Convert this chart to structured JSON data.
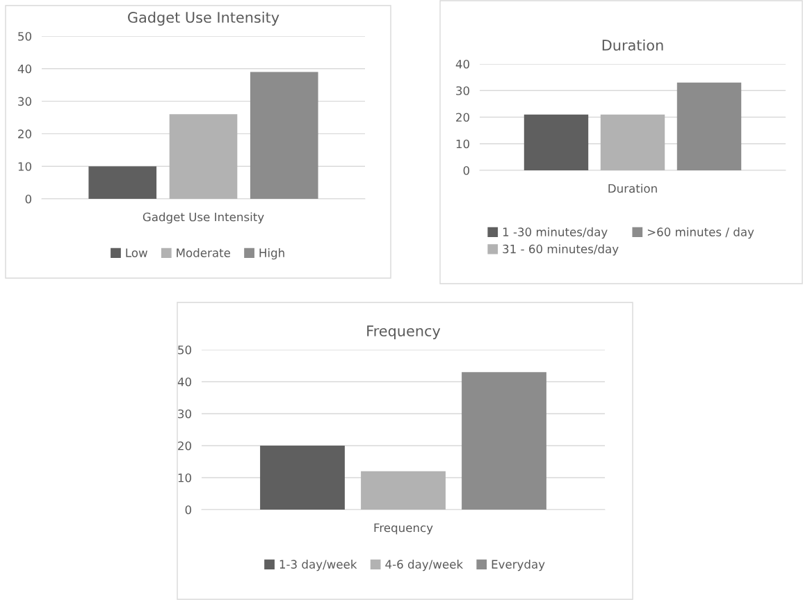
{
  "chart_data": [
    {
      "type": "bar",
      "title": "Gadget Use Intensity",
      "categories": [
        "Gadget Use Intensity"
      ],
      "ylim": [
        0,
        50
      ],
      "yticks": [
        0,
        10,
        20,
        30,
        40,
        50
      ],
      "grid": "y",
      "legend": "bottom",
      "series": [
        {
          "name": "Low",
          "color": "#5f5f5f",
          "values": [
            10
          ]
        },
        {
          "name": "Moderate",
          "color": "#b2b2b2",
          "values": [
            26
          ]
        },
        {
          "name": "High",
          "color": "#8c8c8c",
          "values": [
            39
          ]
        }
      ]
    },
    {
      "type": "bar",
      "title": "Duration",
      "categories": [
        "Duration"
      ],
      "ylim": [
        0,
        40
      ],
      "yticks": [
        0,
        10,
        20,
        30,
        40
      ],
      "grid": "y",
      "legend": "bottom",
      "series": [
        {
          "name": "1 -30 minutes/day",
          "color": "#5f5f5f",
          "values": [
            21
          ]
        },
        {
          "name": "31 - 60 minutes/day",
          "color": "#b2b2b2",
          "values": [
            21
          ]
        },
        {
          "name": ">60 minutes / day",
          "color": "#8c8c8c",
          "values": [
            33
          ]
        }
      ]
    },
    {
      "type": "bar",
      "title": "Frequency",
      "categories": [
        "Frequency"
      ],
      "ylim": [
        0,
        50
      ],
      "yticks": [
        0,
        10,
        20,
        30,
        40,
        50
      ],
      "grid": "y",
      "legend": "bottom",
      "series": [
        {
          "name": "1-3 day/week",
          "color": "#5f5f5f",
          "values": [
            20
          ]
        },
        {
          "name": "4-6 day/week",
          "color": "#b2b2b2",
          "values": [
            12
          ]
        },
        {
          "name": "Everyday",
          "color": "#8c8c8c",
          "values": [
            43
          ]
        }
      ]
    }
  ]
}
